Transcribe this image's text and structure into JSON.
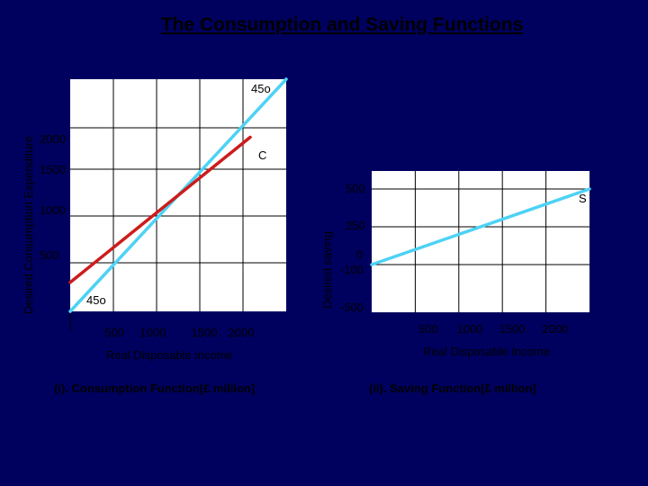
{
  "title": "The Consumption and Saving Functions",
  "colors": {
    "background": "#00005f",
    "panel": "#ffffff",
    "line_45": "#4dd2f5",
    "line_c": "#cc1c1c",
    "line_s": "#4dd2f5"
  },
  "chart_data": [
    {
      "type": "line",
      "caption": "(i). Consumption Function[£ million]",
      "xlabel": "Real Disposable Income",
      "ylabel": "Desired Consumption Expenditure",
      "x_ticks": [
        "500",
        "1000",
        "1500",
        "2000"
      ],
      "y_ticks": [
        "500",
        "1000",
        "1500",
        "2000"
      ],
      "xlim": [
        0,
        2400
      ],
      "ylim": [
        0,
        2400
      ],
      "grid": true,
      "series": [
        {
          "name": "45o",
          "x": [
            0,
            2400
          ],
          "y": [
            0,
            2400
          ],
          "label_text": "45o"
        },
        {
          "name": "C",
          "x": [
            0,
            2000
          ],
          "y": [
            300,
            1800
          ],
          "label_text": "C"
        }
      ],
      "annotations": [
        {
          "text": "45o",
          "at": "origin"
        }
      ]
    },
    {
      "type": "line",
      "caption": "(ii). Saving Function[£ million]",
      "xlabel": "Real Disposable Income",
      "ylabel": "Desired saving",
      "x_ticks": [
        "500",
        "1000",
        "1500",
        "2000"
      ],
      "y_ticks": [
        "-500",
        "-100",
        "0",
        "250",
        "500"
      ],
      "xlim": [
        0,
        2400
      ],
      "grid": true,
      "series": [
        {
          "name": "S",
          "x": [
            0,
            2400
          ],
          "y": [
            -100,
            500
          ],
          "label_text": "S"
        }
      ]
    }
  ]
}
